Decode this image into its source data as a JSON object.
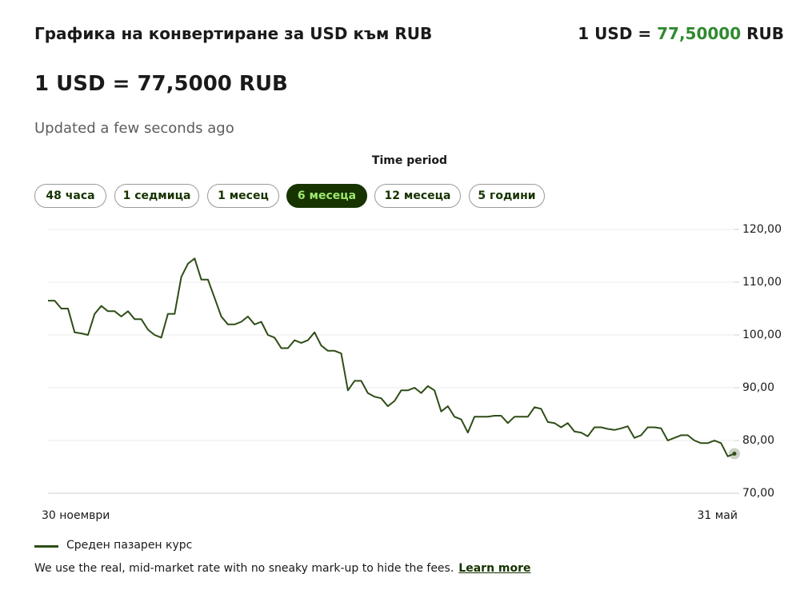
{
  "header": {
    "title": "Графика на конвертиране за USD към RUB",
    "rate_prefix": "1 USD =",
    "rate_value": "77,50000",
    "rate_suffix": "RUB"
  },
  "rate": "1 USD = 77,5000 RUB",
  "updated": "Updated a few seconds ago",
  "period": {
    "label": "Time period",
    "options": [
      "48 часа",
      "1 седмица",
      "1 месец",
      "6 месеца",
      "12 месеца",
      "5 години"
    ],
    "active": 3
  },
  "chart_data": {
    "type": "line",
    "categories": [
      "30 ноември",
      null,
      null,
      null,
      null,
      null,
      null,
      null,
      null,
      null,
      null,
      null,
      null,
      null,
      null,
      null,
      null,
      null,
      null,
      null,
      null,
      null,
      null,
      null,
      null,
      null,
      null,
      null,
      null,
      null,
      null,
      null,
      null,
      null,
      null,
      null,
      null,
      null,
      null,
      null,
      null,
      null,
      null,
      null,
      null,
      null,
      null,
      null,
      null,
      null,
      null,
      null,
      null,
      null,
      null,
      null,
      null,
      null,
      null,
      null,
      null,
      null,
      null,
      null,
      null,
      null,
      null,
      null,
      null,
      null,
      null,
      null,
      null,
      null,
      null,
      null,
      null,
      null,
      null,
      null,
      null,
      null,
      null,
      null,
      null,
      null,
      null,
      null,
      null,
      null,
      null,
      null,
      null,
      null,
      null,
      null,
      null,
      null,
      null,
      null,
      null,
      null,
      null,
      "31 май"
    ],
    "series": [
      {
        "name": "Среден пазарен курс",
        "color": "#2e4d16",
        "values": [
          106.5,
          106.5,
          105,
          105,
          100.5,
          100.3,
          100,
          104,
          105.5,
          104.5,
          104.5,
          103.5,
          104.5,
          103,
          103,
          101,
          100,
          99.5,
          104,
          104,
          111,
          113.5,
          114.5,
          110.5,
          110.5,
          107,
          103.5,
          102,
          102,
          102.5,
          103.5,
          102,
          102.5,
          100,
          99.5,
          97.5,
          97.5,
          99,
          98.5,
          99,
          100.5,
          98,
          97,
          97,
          96.5,
          89.5,
          91.3,
          91.3,
          89,
          88.3,
          88,
          86.5,
          87.5,
          89.5,
          89.5,
          90,
          89,
          90.3,
          89.5,
          85.5,
          86.5,
          84.5,
          84,
          81.5,
          84.5,
          84.5,
          84.5,
          84.7,
          84.7,
          83.3,
          84.5,
          84.5,
          84.5,
          86.3,
          86,
          83.5,
          83.3,
          82.5,
          83.3,
          81.7,
          81.5,
          80.8,
          82.5,
          82.5,
          82.2,
          82,
          82.3,
          82.7,
          80.5,
          81,
          82.5,
          82.5,
          82.3,
          80,
          80.5,
          81,
          81,
          80,
          79.5,
          79.5,
          80,
          79.5,
          77,
          77.5
        ]
      }
    ],
    "ylim": [
      70,
      120
    ],
    "yticks": [
      {
        "value": 70,
        "label": "70,00"
      },
      {
        "value": 80,
        "label": "80,00"
      },
      {
        "value": 90,
        "label": "90,00"
      },
      {
        "value": 100,
        "label": "100,00"
      },
      {
        "value": 110,
        "label": "110,00"
      },
      {
        "value": 120,
        "label": "120,00"
      }
    ],
    "grid": true
  },
  "footer": {
    "text": "We use the real, mid-market rate with no sneaky mark-up to hide the fees.",
    "link": "Learn more"
  }
}
